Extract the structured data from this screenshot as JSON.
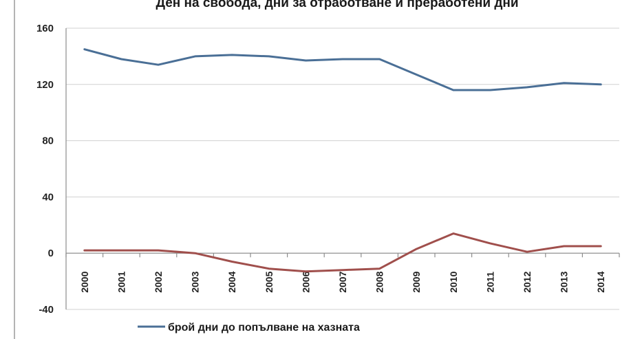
{
  "chart_data": {
    "type": "line",
    "title": "Ден на свобода, дни за отработване и преработени дни",
    "xlabel": "",
    "ylabel": "",
    "categories": [
      "2000",
      "2001",
      "2002",
      "2003",
      "2004",
      "2005",
      "2006",
      "2007",
      "2008",
      "2009",
      "2010",
      "2011",
      "2012",
      "2013",
      "2014"
    ],
    "ylim": [
      -40,
      160
    ],
    "yticks": [
      160,
      120,
      80,
      40,
      0,
      -40
    ],
    "grid": true,
    "legend_position": "bottom",
    "series": [
      {
        "name": "брой дни до попълване на хазната",
        "color": "#4a6f96",
        "values": [
          145,
          138,
          134,
          140,
          141,
          140,
          137,
          138,
          138,
          127,
          116,
          116,
          118,
          121,
          120
        ]
      },
      {
        "name": "",
        "color": "#a04f4c",
        "values": [
          2,
          2,
          2,
          0,
          -6,
          -11,
          -13,
          -12,
          -11,
          3,
          14,
          7,
          1,
          5,
          5
        ]
      }
    ]
  }
}
